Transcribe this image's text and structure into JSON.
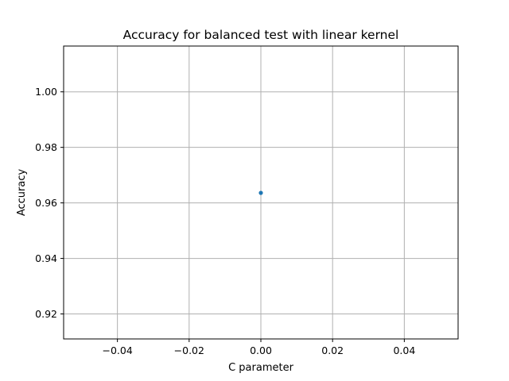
{
  "chart_data": {
    "type": "scatter",
    "title": "Accuracy for balanced test with linear kernel",
    "xlabel": "C parameter",
    "ylabel": "Accuracy",
    "xlim": [
      -0.055,
      0.055
    ],
    "ylim": [
      0.911,
      1.0165
    ],
    "grid": true,
    "xticks": [
      -0.04,
      -0.02,
      0.0,
      0.02,
      0.04
    ],
    "xtick_labels": [
      "−0.04",
      "−0.02",
      "0.00",
      "0.02",
      "0.04"
    ],
    "yticks": [
      0.92,
      0.94,
      0.96,
      0.98,
      1.0
    ],
    "ytick_labels": [
      "0.92",
      "0.94",
      "0.96",
      "0.98",
      "1.00"
    ],
    "series": [
      {
        "x": [
          0.0
        ],
        "y": [
          0.9636
        ],
        "color": "#1f77b4"
      }
    ]
  }
}
